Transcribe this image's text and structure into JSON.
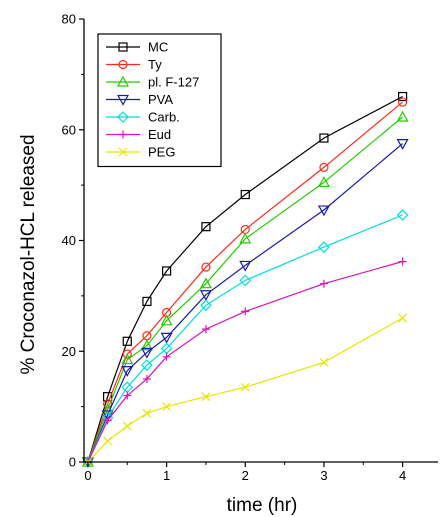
{
  "chart_data": {
    "type": "line",
    "xlabel": "time (hr)",
    "ylabel": "% Croconazol-HCL released",
    "xlim": [
      -0.05,
      4.45
    ],
    "ylim": [
      0,
      80
    ],
    "x_ticks": [
      0,
      1,
      2,
      3,
      4
    ],
    "y_ticks": [
      0,
      20,
      40,
      60,
      80
    ],
    "legend_position": "top-left",
    "grid": false,
    "series": [
      {
        "name": "MC",
        "color": "#000000",
        "marker": "square",
        "x": [
          0,
          0.25,
          0.5,
          0.75,
          1,
          1.5,
          2,
          3,
          4
        ],
        "y": [
          0,
          11.8,
          21.8,
          29,
          34.5,
          42.5,
          48.3,
          58.5,
          66
        ]
      },
      {
        "name": "Ty",
        "color": "#ff2a1a",
        "marker": "circle",
        "x": [
          0,
          0.25,
          0.5,
          0.75,
          1,
          1.5,
          2,
          3,
          4
        ],
        "y": [
          0,
          10.5,
          19.5,
          22.8,
          27,
          35.2,
          42,
          53.2,
          65
        ]
      },
      {
        "name": "pl. F-127",
        "color": "#22cc00",
        "marker": "triangle-up",
        "x": [
          0,
          0.25,
          0.5,
          0.75,
          1,
          1.5,
          2,
          3,
          4
        ],
        "y": [
          0,
          9.5,
          18.5,
          21,
          25.5,
          32.2,
          40.3,
          50.5,
          62.3
        ]
      },
      {
        "name": "PVA",
        "color": "#1a1aa8",
        "marker": "triangle-down",
        "x": [
          0,
          0.25,
          0.5,
          0.75,
          1,
          1.5,
          2,
          3,
          4
        ],
        "y": [
          0,
          8.5,
          16.5,
          19.8,
          22.5,
          30.2,
          35.5,
          45.5,
          57.5
        ]
      },
      {
        "name": "Carb.",
        "color": "#00dddd",
        "marker": "diamond",
        "x": [
          0,
          0.25,
          0.5,
          0.75,
          1,
          1.5,
          2,
          3,
          4
        ],
        "y": [
          0,
          8,
          13.5,
          17.5,
          20.5,
          28.3,
          32.8,
          38.8,
          44.6
        ]
      },
      {
        "name": "Eud",
        "color": "#dd11bb",
        "marker": "plus",
        "x": [
          0,
          0.25,
          0.5,
          0.75,
          1,
          1.5,
          2,
          3,
          4
        ],
        "y": [
          0,
          7.5,
          12,
          15,
          19,
          24,
          27.2,
          32.2,
          36.2
        ]
      },
      {
        "name": "PEG",
        "color": "#e6e600",
        "marker": "x",
        "x": [
          0,
          0.25,
          0.5,
          0.75,
          1,
          1.5,
          2,
          3,
          4
        ],
        "y": [
          0,
          3.8,
          6.5,
          8.8,
          10,
          11.8,
          13.5,
          18,
          26
        ]
      }
    ]
  }
}
